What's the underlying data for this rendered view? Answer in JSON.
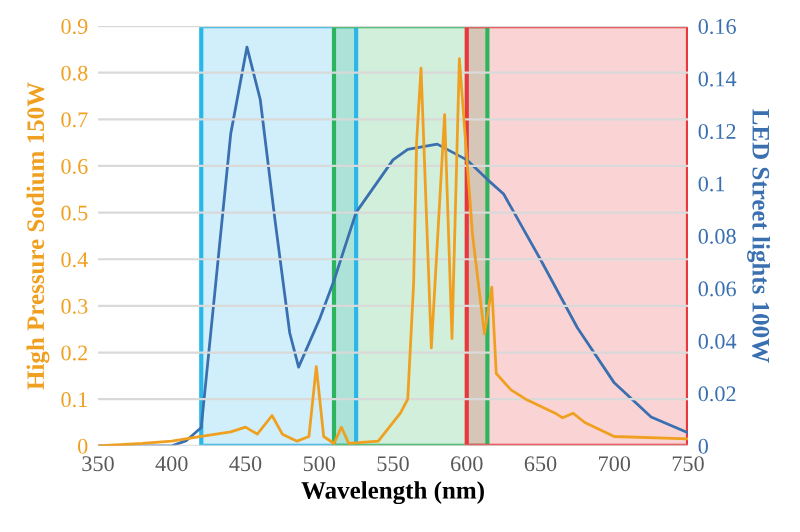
{
  "chart_data": {
    "type": "line",
    "xlabel": "Wavelength (nm)",
    "ylabel": "High Pressure Sodium 150W",
    "y2label": "LED Street lights 100W",
    "xlim": [
      350,
      750
    ],
    "xticks": [
      350,
      400,
      450,
      500,
      550,
      600,
      650,
      700,
      750
    ],
    "ylim": [
      0,
      0.9
    ],
    "yticks": [
      0,
      0.1,
      0.2,
      0.3,
      0.4,
      0.5,
      0.6,
      0.7,
      0.8,
      0.9
    ],
    "y2lim": [
      0,
      0.16
    ],
    "y2ticks": [
      0,
      0.02,
      0.04,
      0.06,
      0.08,
      0.1,
      0.12,
      0.14,
      0.16
    ],
    "grid": "y",
    "legend": false,
    "series": [
      {
        "color": "#f0a020",
        "axis": "y",
        "x": [
          350,
          380,
          400,
          420,
          440,
          450,
          458,
          468,
          475,
          485,
          493,
          498,
          503,
          510,
          515,
          520,
          540,
          555,
          560,
          564,
          566,
          569,
          576,
          585,
          590,
          595,
          604,
          612,
          617,
          620,
          630,
          640,
          660,
          665,
          672,
          680,
          700,
          750
        ],
        "values": [
          0.0,
          0.005,
          0.01,
          0.02,
          0.03,
          0.04,
          0.025,
          0.065,
          0.025,
          0.01,
          0.02,
          0.17,
          0.02,
          0.005,
          0.04,
          0.005,
          0.01,
          0.07,
          0.1,
          0.35,
          0.65,
          0.81,
          0.21,
          0.71,
          0.23,
          0.83,
          0.45,
          0.24,
          0.34,
          0.155,
          0.12,
          0.1,
          0.07,
          0.06,
          0.07,
          0.05,
          0.02,
          0.015
        ]
      },
      {
        "color": "#3a6fb0",
        "axis": "y2",
        "x": [
          350,
          400,
          410,
          420,
          430,
          440,
          451,
          460,
          470,
          480,
          486,
          500,
          510,
          525,
          550,
          560,
          580,
          600,
          615,
          625,
          650,
          675,
          700,
          725,
          750
        ],
        "values": [
          0.0,
          0.0,
          0.002,
          0.007,
          0.063,
          0.119,
          0.152,
          0.132,
          0.086,
          0.043,
          0.03,
          0.048,
          0.063,
          0.089,
          0.109,
          0.113,
          0.115,
          0.109,
          0.101,
          0.096,
          0.071,
          0.045,
          0.024,
          0.011,
          0.005
        ]
      }
    ],
    "bands": [
      {
        "axis": "x",
        "from": 420,
        "to": 525,
        "color": "#29b6e8"
      },
      {
        "axis": "x",
        "from": 510,
        "to": 614,
        "color": "#2db55d"
      },
      {
        "axis": "x",
        "from": 600,
        "to": 750,
        "color": "#e8383d"
      }
    ]
  }
}
